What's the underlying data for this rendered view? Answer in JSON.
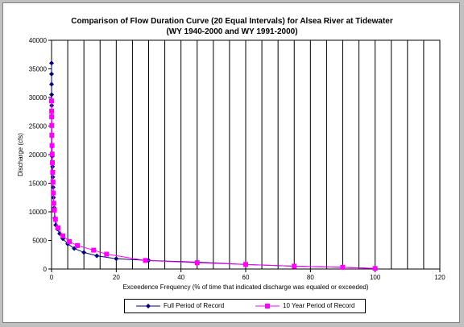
{
  "title_line1": "Comparison of Flow Duration Curve (20 Equal Intervals) for Alsea River at Tidewater",
  "title_line2": "(WY 1940-2000 and WY 1991-2000)",
  "chart_data": {
    "type": "line",
    "title": "Comparison of Flow Duration Curve (20 Equal Intervals) for Alsea River at Tidewater (WY 1940-2000 and WY 1991-2000)",
    "xlabel": "Exceedence Frequency (% of time that indicated discharge was equaled or exceeded)",
    "ylabel": "Discharge (cfs)",
    "xlim": [
      0,
      120
    ],
    "ylim": [
      0,
      40000
    ],
    "xticks": [
      "0",
      "20",
      "40",
      "60",
      "80",
      "100",
      "120"
    ],
    "yticks": [
      "0",
      "5000",
      "10000",
      "15000",
      "20000",
      "25000",
      "30000",
      "35000",
      "40000"
    ],
    "grid": "vertical",
    "legend_position": "bottom",
    "series": [
      {
        "name": "Full Period of Record",
        "color": "#000080",
        "marker": "diamond",
        "x": [
          0.002,
          0.004,
          0.01,
          0.02,
          0.03,
          0.05,
          0.07,
          0.1,
          0.15,
          0.2,
          0.3,
          0.4,
          0.5,
          0.6,
          0.8,
          1.0,
          1.3,
          1.8,
          2.5,
          3.5,
          5.0,
          7.0,
          10.0,
          14.0,
          20.0,
          30.0,
          45.0,
          60.0,
          75.0,
          90.0,
          100.0
        ],
        "y": [
          36000,
          34100,
          32300,
          30500,
          28600,
          26800,
          25000,
          23200,
          21400,
          19700,
          17900,
          16100,
          14300,
          12500,
          10700,
          8900,
          7700,
          7000,
          6200,
          5300,
          4400,
          3600,
          2900,
          2300,
          1800,
          1500,
          1200,
          800,
          500,
          300,
          100
        ]
      },
      {
        "name": "10 Year Period of Record",
        "color": "#ff00ff",
        "marker": "square",
        "x": [
          0.01,
          0.03,
          0.05,
          0.08,
          0.1,
          0.15,
          0.2,
          0.25,
          0.35,
          0.45,
          0.55,
          0.7,
          0.9,
          1.2,
          2.0,
          3.5,
          5.5,
          8.0,
          13.0,
          17.0,
          29.0,
          45.0,
          60.0,
          75.0,
          90.0,
          100.0
        ],
        "y": [
          29400,
          27600,
          26600,
          25100,
          23400,
          21600,
          20100,
          18600,
          16900,
          15200,
          13300,
          11500,
          10300,
          8700,
          7200,
          5800,
          4800,
          4100,
          3300,
          2600,
          1500,
          1100,
          800,
          500,
          300,
          100
        ]
      }
    ]
  }
}
